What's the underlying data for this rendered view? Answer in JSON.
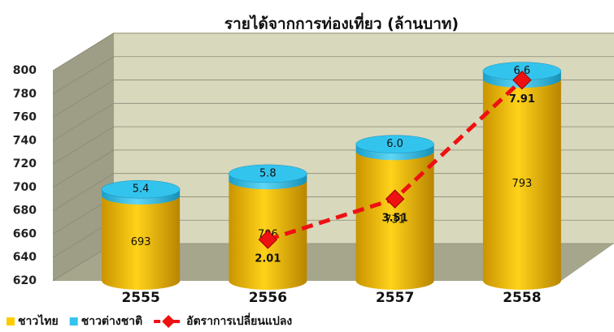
{
  "chart_data": {
    "type": "bar",
    "title": "รายได้จากการท่องเที่ยว (ล้านบาท)",
    "categories": [
      "2555",
      "2556",
      "2557",
      "2558"
    ],
    "series": [
      {
        "name": "ชาวไทย",
        "color": "#ffcc00",
        "values": [
          693,
          706,
          731,
          793
        ]
      },
      {
        "name": "ชาวต่างชาติ",
        "color": "#33c4ee",
        "values": [
          5.4,
          5.8,
          6.0,
          6.6
        ],
        "value_labels": [
          "5.4",
          "5.8",
          "6.0",
          "6.6"
        ]
      },
      {
        "name": "อัตราการเปลี่ยนแปลง",
        "color": "#ee1111",
        "type": "line",
        "axis": "y2",
        "values": [
          null,
          2.01,
          3.51,
          7.91
        ]
      }
    ],
    "stacked": true,
    "ylim": [
      620,
      800
    ],
    "yticks": [
      620,
      640,
      660,
      680,
      700,
      720,
      740,
      760,
      780,
      800
    ],
    "y2lim": [
      0.48,
      8.26
    ],
    "grid": true,
    "legend": "bottom"
  }
}
